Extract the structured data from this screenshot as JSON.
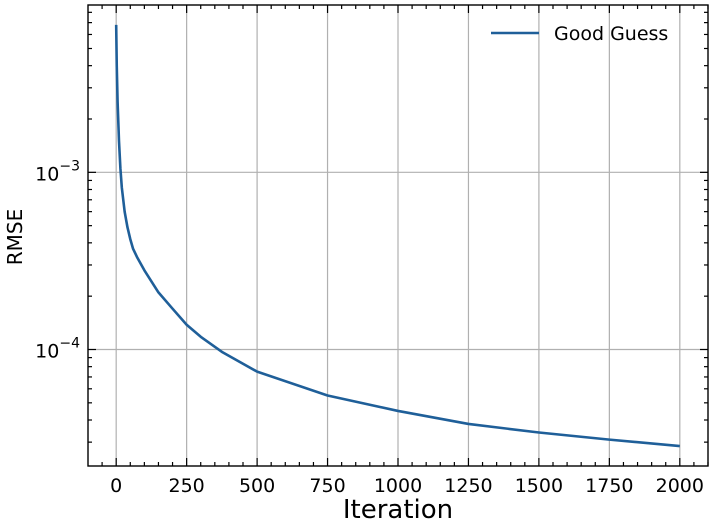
{
  "chart_data": {
    "type": "line",
    "title": "",
    "xlabel": "Iteration",
    "ylabel": "RMSE",
    "xlim": [
      -100,
      2100
    ],
    "ylim": [
      2.2e-05,
      0.0088
    ],
    "yscale": "log",
    "grid": true,
    "legend": "top-right",
    "x_ticks": [
      0,
      250,
      500,
      750,
      1000,
      1250,
      1500,
      1750,
      2000
    ],
    "y_ticks": [
      0.0001,
      0.001
    ],
    "y_tick_labels": [
      {
        "base": "10",
        "exp": "−4"
      },
      {
        "base": "10",
        "exp": "−3"
      }
    ],
    "series": [
      {
        "name": "Good Guess",
        "color": "#1f5f99",
        "x": [
          0,
          2,
          5,
          10,
          15,
          20,
          30,
          40,
          50,
          60,
          75,
          100,
          150,
          200,
          250,
          300,
          375,
          500,
          750,
          1000,
          1250,
          1500,
          1750,
          2000
        ],
        "y": [
          0.0068,
          0.004,
          0.0025,
          0.0015,
          0.00105,
          0.00082,
          0.0006,
          0.00049,
          0.00042,
          0.00037,
          0.00033,
          0.00028,
          0.00021,
          0.00017,
          0.000138,
          0.000118,
          9.7e-05,
          7.5e-05,
          5.5e-05,
          4.5e-05,
          3.8e-05,
          3.4e-05,
          3.1e-05,
          2.85e-05
        ]
      }
    ]
  }
}
